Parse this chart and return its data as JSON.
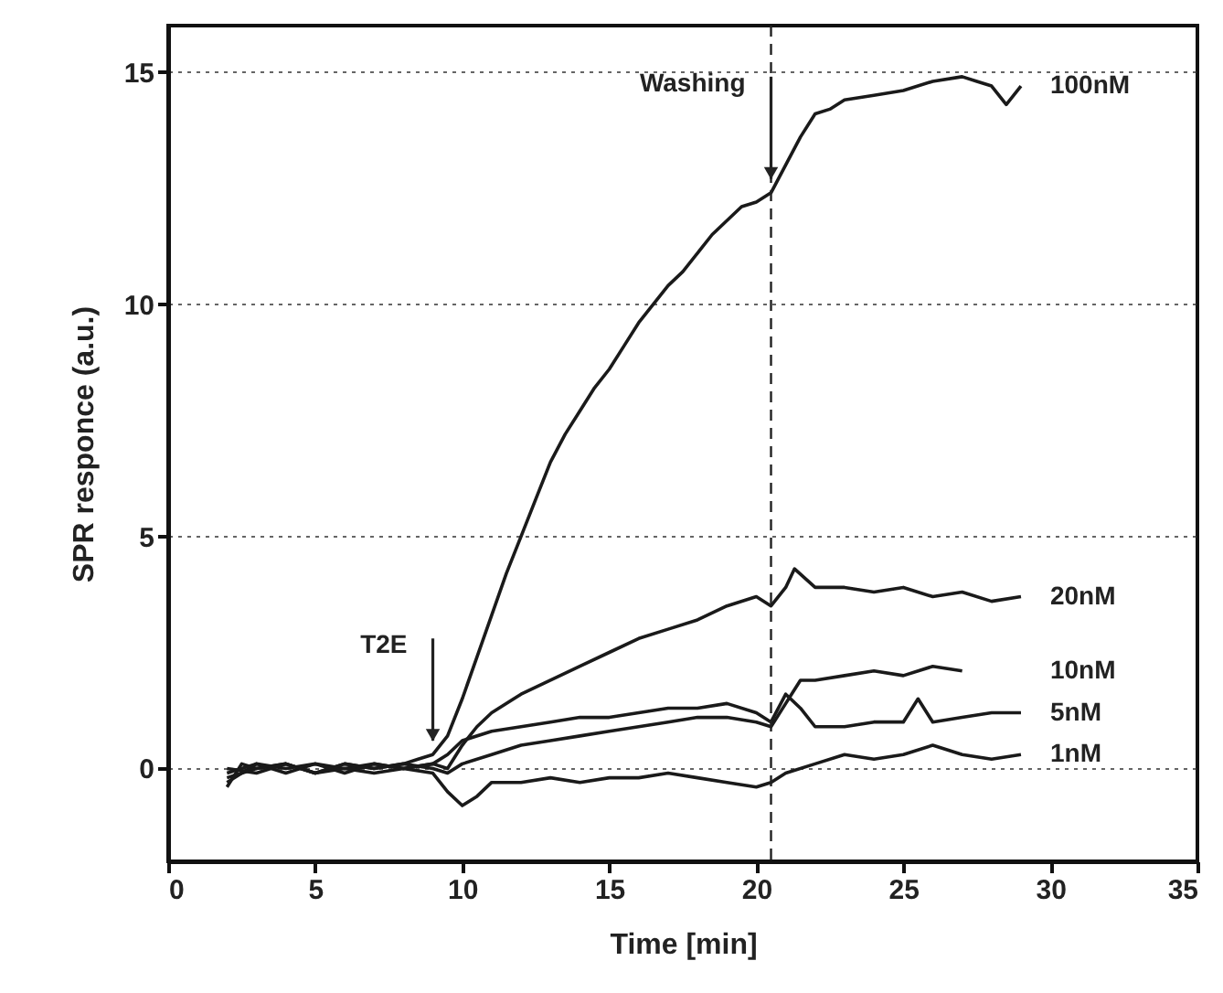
{
  "chart_data": {
    "type": "line",
    "xlabel": "Time [min]",
    "ylabel": "SPR responce (a.u.)",
    "xlim": [
      0,
      35
    ],
    "xticks": [
      0,
      5,
      10,
      15,
      20,
      25,
      30,
      35
    ],
    "ylim": [
      -2,
      16
    ],
    "yticks": [
      0,
      5,
      10,
      15
    ],
    "grid": "y",
    "marker": "none",
    "line_style": "solid",
    "ref_lines": [
      {
        "axis": "x",
        "value": 20.5,
        "line_style": "dashed",
        "color": "#222222"
      }
    ],
    "annotations": [
      {
        "text": "Washing",
        "x": 20.5,
        "y": 12.7
      },
      {
        "text": "T2E",
        "x": 9,
        "y": 0.6
      }
    ],
    "series": [
      {
        "name": "100nM",
        "color": "#1a1a1a",
        "x": [
          2,
          2.5,
          3,
          4,
          5,
          6,
          7,
          8,
          8.5,
          9,
          9.5,
          10,
          10.5,
          11,
          11.5,
          12,
          12.5,
          13,
          13.5,
          14,
          14.5,
          15,
          15.5,
          16,
          16.5,
          17,
          17.5,
          18,
          18.5,
          19,
          19.5,
          20,
          20.5,
          21,
          21.5,
          22,
          22.5,
          23,
          24,
          25,
          26,
          27,
          27.5,
          28,
          28.5,
          29
        ],
        "values": [
          -0.4,
          0.1,
          0.0,
          0.1,
          -0.1,
          0.1,
          0.0,
          0.1,
          0.2,
          0.3,
          0.7,
          1.5,
          2.4,
          3.3,
          4.2,
          5.0,
          5.8,
          6.6,
          7.2,
          7.7,
          8.2,
          8.6,
          9.1,
          9.6,
          10.0,
          10.4,
          10.7,
          11.1,
          11.5,
          11.8,
          12.1,
          12.2,
          12.4,
          13.0,
          13.6,
          14.1,
          14.2,
          14.4,
          14.5,
          14.6,
          14.8,
          14.9,
          14.8,
          14.7,
          14.3,
          14.7
        ]
      },
      {
        "name": "20nM",
        "color": "#1a1a1a",
        "x": [
          2,
          3,
          4,
          5,
          6,
          7,
          8,
          9,
          9.5,
          10,
          10.5,
          11,
          12,
          13,
          14,
          15,
          16,
          17,
          18,
          19,
          20,
          20.5,
          21,
          21.3,
          22,
          23,
          24,
          25,
          26,
          27,
          28,
          29
        ],
        "values": [
          -0.3,
          0.1,
          -0.1,
          0.1,
          0.0,
          0.1,
          0.0,
          0.1,
          0.0,
          0.5,
          0.9,
          1.2,
          1.6,
          1.9,
          2.2,
          2.5,
          2.8,
          3.0,
          3.2,
          3.5,
          3.7,
          3.5,
          3.9,
          4.3,
          3.9,
          3.9,
          3.8,
          3.9,
          3.7,
          3.8,
          3.6,
          3.7
        ]
      },
      {
        "name": "10nM",
        "color": "#1a1a1a",
        "x": [
          2,
          3,
          4,
          5,
          6,
          7,
          8,
          9,
          9.5,
          10,
          11,
          12,
          13,
          14,
          15,
          16,
          17,
          18,
          19,
          20,
          20.5,
          21,
          21.5,
          22,
          23,
          24,
          25,
          26,
          27
        ],
        "values": [
          -0.2,
          0.0,
          0.1,
          -0.1,
          0.1,
          0.0,
          0.1,
          0.0,
          -0.1,
          0.1,
          0.3,
          0.5,
          0.6,
          0.7,
          0.8,
          0.9,
          1.0,
          1.1,
          1.1,
          1.0,
          0.9,
          1.4,
          1.9,
          1.9,
          2.0,
          2.1,
          2.0,
          2.2,
          2.1
        ]
      },
      {
        "name": "5nM",
        "color": "#1a1a1a",
        "x": [
          2,
          3,
          4,
          5,
          6,
          7,
          8,
          9,
          9.5,
          10,
          11,
          12,
          13,
          14,
          15,
          16,
          17,
          18,
          19,
          20,
          20.5,
          21,
          21.5,
          22,
          23,
          24,
          25,
          25.5,
          26,
          27,
          28,
          29
        ],
        "values": [
          -0.1,
          0.1,
          0.0,
          0.1,
          -0.1,
          0.1,
          0.0,
          0.1,
          0.3,
          0.6,
          0.8,
          0.9,
          1.0,
          1.1,
          1.1,
          1.2,
          1.3,
          1.3,
          1.4,
          1.2,
          1.0,
          1.6,
          1.3,
          0.9,
          0.9,
          1.0,
          1.0,
          1.5,
          1.0,
          1.1,
          1.2,
          1.2
        ]
      },
      {
        "name": "1nM",
        "color": "#1a1a1a",
        "x": [
          2,
          3,
          4,
          5,
          6,
          7,
          8,
          9,
          9.5,
          10,
          10.5,
          11,
          12,
          13,
          14,
          15,
          16,
          17,
          18,
          19,
          20,
          20.5,
          21,
          22,
          23,
          24,
          25,
          26,
          27,
          28,
          29
        ],
        "values": [
          0.0,
          -0.1,
          0.1,
          -0.1,
          0.0,
          -0.1,
          0.0,
          -0.1,
          -0.5,
          -0.8,
          -0.6,
          -0.3,
          -0.3,
          -0.2,
          -0.3,
          -0.2,
          -0.2,
          -0.1,
          -0.2,
          -0.3,
          -0.4,
          -0.3,
          -0.1,
          0.1,
          0.3,
          0.2,
          0.3,
          0.5,
          0.3,
          0.2,
          0.3
        ]
      }
    ]
  }
}
